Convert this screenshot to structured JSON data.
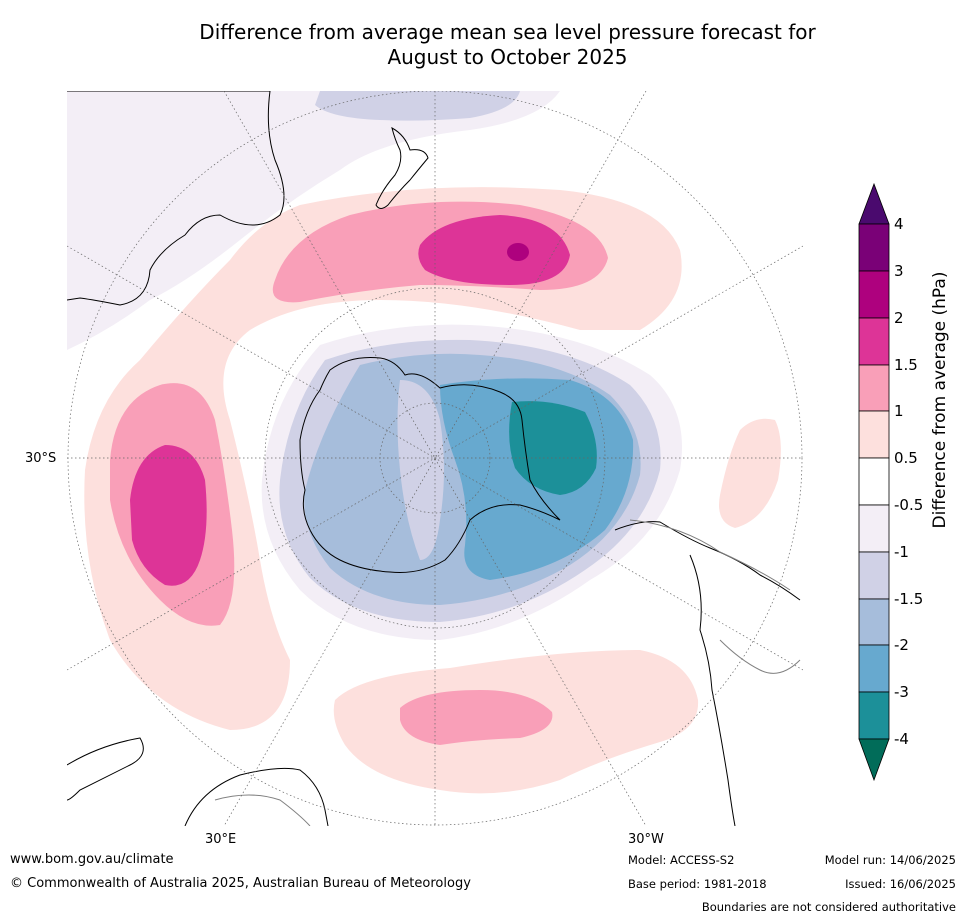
{
  "title_line1": "Difference from average mean sea level pressure forecast for",
  "title_line2": "August to October 2025",
  "graticule_labels": {
    "lat_30s": "30°S",
    "lon_30e": "30°E",
    "lon_30w": "30°W"
  },
  "colorbar": {
    "title": "Difference from average (hPa)",
    "ticks": [
      "4",
      "3",
      "2",
      "1.5",
      "1",
      "0.5",
      "-0.5",
      "-1",
      "-1.5",
      "-2",
      "-3",
      "-4"
    ],
    "colors": {
      "over": "#4a0a6e",
      "c_3_4": "#7a0177",
      "c_2_3": "#ae017e",
      "c_1_5_2": "#dd3497",
      "c_1_1_5": "#f99fb8",
      "c_0_5_1": "#fde0dd",
      "c_neutral": "#ffffff",
      "c_m1_m0_5": "#f3eef6",
      "c_m1_5_m1": "#d0d1e6",
      "c_m2_m1_5": "#a6bddb",
      "c_m3_m2": "#67a9cf",
      "c_m4_m3": "#1c9099",
      "under": "#016c59"
    }
  },
  "footer": {
    "website": "www.bom.gov.au/climate",
    "copyright": "© Commonwealth of Australia 2025, Australian Bureau of Meteorology",
    "model": "Model: ACCESS-S2",
    "base_period": "Base period: 1981-2018",
    "model_run": "Model run: 14/06/2025",
    "issued": "Issued: 16/06/2025",
    "disclaimer": "Boundaries are not considered authoritative"
  }
}
